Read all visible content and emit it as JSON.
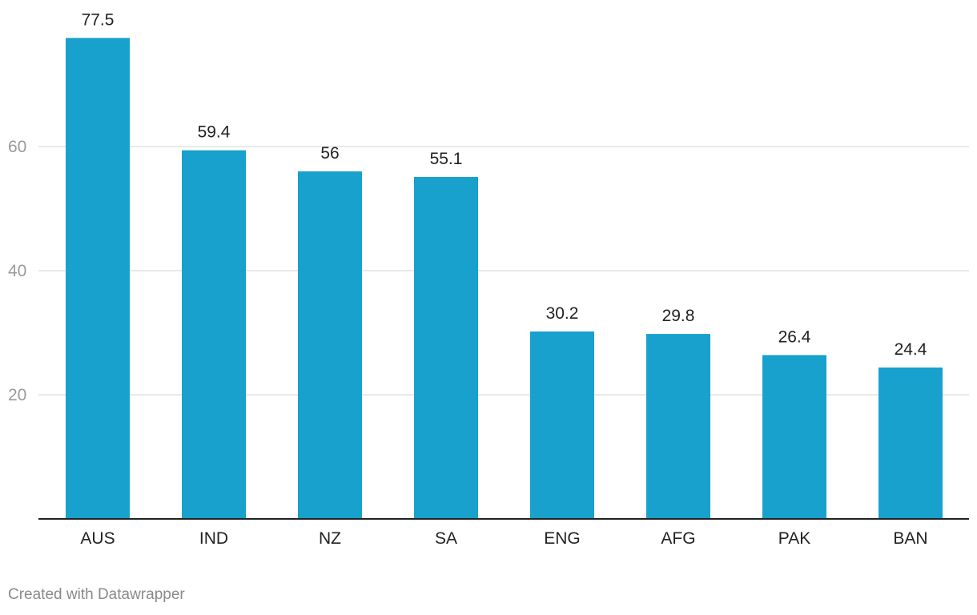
{
  "chart_data": {
    "type": "bar",
    "categories": [
      "AUS",
      "IND",
      "NZ",
      "SA",
      "ENG",
      "AFG",
      "PAK",
      "BAN"
    ],
    "values": [
      77.5,
      59.4,
      56,
      55.1,
      30.2,
      29.8,
      26.4,
      24.4
    ],
    "value_labels": [
      "77.5",
      "59.4",
      "56",
      "55.1",
      "30.2",
      "29.8",
      "26.4",
      "24.4"
    ],
    "yticks": [
      20,
      40,
      60
    ],
    "ytick_labels": [
      "20",
      "40",
      "60"
    ],
    "ylim": [
      0,
      80
    ],
    "grid": true,
    "bar_color": "#18a1cd",
    "gridline_color": "#e2e2e2",
    "baseline_color": "#222222"
  },
  "footer": {
    "credit": "Created with Datawrapper"
  }
}
